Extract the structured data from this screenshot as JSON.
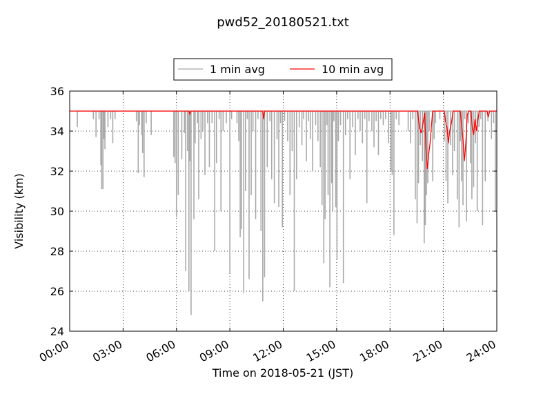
{
  "chart_data": {
    "type": "line",
    "title": "pwd52_20180521.txt",
    "xlabel": "Time on 2018-05-21 (JST)",
    "ylabel": "Visibility (km)",
    "x_unit": "hours",
    "xlim": [
      0,
      24
    ],
    "ylim": [
      24,
      36
    ],
    "x_ticks": [
      0,
      3,
      6,
      9,
      12,
      15,
      18,
      21,
      24
    ],
    "x_tick_labels": [
      "00:00",
      "03:00",
      "06:00",
      "09:00",
      "12:00",
      "15:00",
      "18:00",
      "21:00",
      "24:00"
    ],
    "y_ticks": [
      24,
      26,
      28,
      30,
      32,
      34,
      36
    ],
    "y_tick_labels": [
      "24",
      "26",
      "28",
      "30",
      "32",
      "34",
      "36"
    ],
    "grid": true,
    "grid_style": "dotted",
    "legend_position": "top-center",
    "legend_columns": 2,
    "series": [
      {
        "name": "1 min avg",
        "color": "#a9a9a9",
        "baseline": 35.0,
        "x_start": 0.4,
        "x_end": 24.0,
        "dips": [
          [
            0.43,
            34.2
          ],
          [
            1.33,
            34.6
          ],
          [
            1.48,
            33.7
          ],
          [
            1.65,
            34.6
          ],
          [
            1.75,
            32.3
          ],
          [
            1.8,
            31.1
          ],
          [
            1.87,
            31.1
          ],
          [
            1.93,
            33.6
          ],
          [
            1.98,
            33.1
          ],
          [
            2.15,
            34.2
          ],
          [
            2.3,
            34.6
          ],
          [
            2.42,
            33.4
          ],
          [
            2.55,
            34.6
          ],
          [
            3.75,
            34.5
          ],
          [
            3.85,
            31.9
          ],
          [
            3.92,
            34.3
          ],
          [
            4.05,
            33.8
          ],
          [
            4.1,
            32.9
          ],
          [
            4.18,
            31.7
          ],
          [
            4.3,
            34.4
          ],
          [
            4.58,
            33.8
          ],
          [
            5.85,
            32.7
          ],
          [
            5.92,
            32.4
          ],
          [
            6.0,
            29.7
          ],
          [
            6.1,
            30.8
          ],
          [
            6.3,
            32.6
          ],
          [
            6.45,
            33.9
          ],
          [
            6.52,
            27.0
          ],
          [
            6.62,
            33.0
          ],
          [
            6.7,
            26.0
          ],
          [
            6.75,
            32.5
          ],
          [
            6.82,
            24.8
          ],
          [
            6.98,
            29.6
          ],
          [
            7.05,
            33.4
          ],
          [
            7.18,
            34.4
          ],
          [
            7.25,
            30.6
          ],
          [
            7.38,
            33.6
          ],
          [
            7.48,
            34.0
          ],
          [
            7.6,
            31.8
          ],
          [
            7.75,
            34.4
          ],
          [
            7.85,
            32.2
          ],
          [
            8.0,
            34.4
          ],
          [
            8.15,
            28.0
          ],
          [
            8.25,
            32.4
          ],
          [
            8.4,
            34.6
          ],
          [
            8.5,
            30.0
          ],
          [
            8.62,
            34.0
          ],
          [
            8.8,
            34.4
          ],
          [
            9.0,
            26.9
          ],
          [
            9.1,
            34.6
          ],
          [
            9.4,
            34.4
          ],
          [
            9.5,
            33.5
          ],
          [
            9.58,
            28.7
          ],
          [
            9.65,
            29.1
          ],
          [
            9.78,
            25.9
          ],
          [
            9.88,
            31.0
          ],
          [
            9.98,
            34.6
          ],
          [
            10.08,
            26.6
          ],
          [
            10.2,
            30.8
          ],
          [
            10.3,
            34.0
          ],
          [
            10.45,
            29.6
          ],
          [
            10.58,
            34.6
          ],
          [
            10.75,
            29.0
          ],
          [
            10.85,
            25.5
          ],
          [
            10.95,
            26.7
          ],
          [
            11.1,
            32.2
          ],
          [
            11.25,
            34.5
          ],
          [
            11.35,
            31.6
          ],
          [
            11.5,
            30.4
          ],
          [
            11.65,
            33.6
          ],
          [
            11.75,
            30.2
          ],
          [
            11.85,
            34.4
          ],
          [
            11.95,
            29.2
          ],
          [
            12.08,
            34.5
          ],
          [
            12.25,
            33.5
          ],
          [
            12.38,
            30.8
          ],
          [
            12.5,
            33.0
          ],
          [
            12.62,
            26.0
          ],
          [
            12.75,
            31.6
          ],
          [
            12.9,
            34.2
          ],
          [
            13.05,
            33.3
          ],
          [
            13.15,
            34.6
          ],
          [
            13.3,
            32.5
          ],
          [
            13.42,
            34.5
          ],
          [
            13.52,
            33.6
          ],
          [
            13.65,
            32.0
          ],
          [
            13.82,
            34.3
          ],
          [
            13.95,
            33.5
          ],
          [
            14.08,
            32.2
          ],
          [
            14.18,
            30.3
          ],
          [
            14.28,
            27.4
          ],
          [
            14.35,
            29.6
          ],
          [
            14.45,
            34.3
          ],
          [
            14.52,
            30.8
          ],
          [
            14.62,
            26.2
          ],
          [
            14.72,
            31.4
          ],
          [
            14.78,
            30.0
          ],
          [
            14.85,
            34.5
          ],
          [
            14.95,
            30.2
          ],
          [
            15.02,
            27.6
          ],
          [
            15.1,
            33.5
          ],
          [
            15.22,
            34.3
          ],
          [
            15.38,
            26.4
          ],
          [
            15.5,
            33.8
          ],
          [
            15.62,
            34.6
          ],
          [
            15.75,
            31.6
          ],
          [
            15.9,
            34.2
          ],
          [
            16.05,
            32.8
          ],
          [
            16.2,
            34.6
          ],
          [
            16.32,
            34.0
          ],
          [
            16.45,
            33.4
          ],
          [
            16.58,
            34.6
          ],
          [
            16.7,
            30.4
          ],
          [
            16.82,
            34.5
          ],
          [
            16.98,
            34.0
          ],
          [
            17.1,
            33.2
          ],
          [
            17.22,
            34.5
          ],
          [
            17.35,
            32.8
          ],
          [
            17.48,
            34.6
          ],
          [
            17.62,
            34.3
          ],
          [
            17.75,
            34.6
          ],
          [
            17.92,
            33.4
          ],
          [
            18.05,
            32.0
          ],
          [
            18.12,
            31.8
          ],
          [
            18.22,
            28.8
          ],
          [
            18.35,
            34.6
          ],
          [
            18.5,
            34.3
          ],
          [
            19.02,
            34.0
          ],
          [
            19.15,
            33.4
          ],
          [
            19.28,
            34.6
          ],
          [
            19.42,
            30.6
          ],
          [
            19.52,
            29.4
          ],
          [
            19.6,
            31.4
          ],
          [
            19.7,
            33.3
          ],
          [
            19.82,
            32.5
          ],
          [
            19.92,
            28.4
          ],
          [
            19.98,
            29.3
          ],
          [
            20.05,
            30.8
          ],
          [
            20.12,
            31.4
          ],
          [
            20.2,
            34.0
          ],
          [
            20.4,
            31.5
          ],
          [
            20.48,
            33.6
          ],
          [
            20.56,
            34.4
          ],
          [
            20.8,
            34.6
          ],
          [
            21.05,
            33.5
          ],
          [
            21.15,
            31.5
          ],
          [
            21.25,
            30.4
          ],
          [
            21.4,
            33.3
          ],
          [
            21.52,
            31.8
          ],
          [
            21.62,
            33.0
          ],
          [
            21.78,
            30.6
          ],
          [
            21.88,
            29.2
          ],
          [
            21.95,
            33.5
          ],
          [
            22.02,
            31.5
          ],
          [
            22.1,
            30.3
          ],
          [
            22.2,
            34.6
          ],
          [
            22.3,
            29.5
          ],
          [
            22.4,
            34.4
          ],
          [
            22.52,
            32.4
          ],
          [
            22.6,
            30.6
          ],
          [
            22.7,
            31.2
          ],
          [
            22.8,
            33.4
          ],
          [
            22.9,
            30.0
          ],
          [
            23.0,
            34.2
          ],
          [
            23.1,
            34.6
          ],
          [
            23.2,
            29.3
          ],
          [
            23.35,
            31.5
          ],
          [
            23.5,
            34.5
          ],
          [
            23.7,
            33.6
          ],
          [
            23.82,
            34.4
          ],
          [
            23.92,
            30.0
          ]
        ]
      },
      {
        "name": "10 min avg",
        "color": "#ff0000",
        "points": [
          [
            0.0,
            35.0
          ],
          [
            6.7,
            35.0
          ],
          [
            6.75,
            34.85
          ],
          [
            6.8,
            35.0
          ],
          [
            10.85,
            35.0
          ],
          [
            10.9,
            34.6
          ],
          [
            10.95,
            35.0
          ],
          [
            19.55,
            35.0
          ],
          [
            19.65,
            34.2
          ],
          [
            19.75,
            33.9
          ],
          [
            19.85,
            34.4
          ],
          [
            19.95,
            34.9
          ],
          [
            20.02,
            33.2
          ],
          [
            20.1,
            32.1
          ],
          [
            20.18,
            32.9
          ],
          [
            20.25,
            33.4
          ],
          [
            20.32,
            34.2
          ],
          [
            20.4,
            35.0
          ],
          [
            21.05,
            35.0
          ],
          [
            21.12,
            34.5
          ],
          [
            21.2,
            34.2
          ],
          [
            21.28,
            33.4
          ],
          [
            21.35,
            34.0
          ],
          [
            21.45,
            34.4
          ],
          [
            21.55,
            35.0
          ],
          [
            21.95,
            35.0
          ],
          [
            22.02,
            34.3
          ],
          [
            22.1,
            33.6
          ],
          [
            22.18,
            32.5
          ],
          [
            22.26,
            33.4
          ],
          [
            22.34,
            34.8
          ],
          [
            22.42,
            35.0
          ],
          [
            22.55,
            35.0
          ],
          [
            22.62,
            34.2
          ],
          [
            22.7,
            33.8
          ],
          [
            22.78,
            34.6
          ],
          [
            22.86,
            34.0
          ],
          [
            22.94,
            34.6
          ],
          [
            23.02,
            35.0
          ],
          [
            23.45,
            35.0
          ],
          [
            23.52,
            34.7
          ],
          [
            23.6,
            35.0
          ],
          [
            24.0,
            35.0
          ]
        ]
      }
    ]
  }
}
